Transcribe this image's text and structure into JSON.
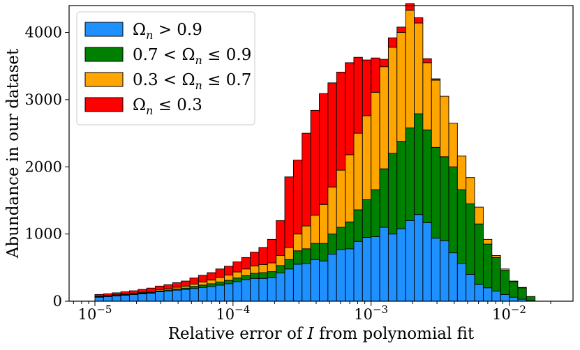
{
  "chart_data": {
    "type": "bar",
    "stacked": true,
    "x_scale": "log",
    "xlabel": "Relative error of I from polynomial fit",
    "ylabel": "Abundance in our dataset",
    "xlim": [
      6.5e-06,
      0.029
    ],
    "ylim": [
      0,
      4400
    ],
    "x_ticks": [
      {
        "value": 1e-05,
        "mantissa": "10",
        "exponent": "−5"
      },
      {
        "value": 0.0001,
        "mantissa": "10",
        "exponent": "−4"
      },
      {
        "value": 0.001,
        "mantissa": "10",
        "exponent": "−3"
      },
      {
        "value": 0.01,
        "mantissa": "10",
        "exponent": "−2"
      }
    ],
    "y_ticks": [
      0,
      1000,
      2000,
      3000,
      4000
    ],
    "legend_position": "upper-left",
    "bin_log10_start": -5.0,
    "bin_log10_width": 0.0625,
    "series": [
      {
        "name": "Ω_n > 0.9",
        "label_main": "Ω",
        "label_sub": "n",
        "label_rest": " > 0.9",
        "color": "#1E90FF",
        "values": [
          60,
          70,
          80,
          90,
          100,
          110,
          120,
          140,
          150,
          165,
          175,
          190,
          205,
          220,
          240,
          260,
          290,
          320,
          340,
          340,
          350,
          420,
          480,
          550,
          560,
          620,
          600,
          700,
          770,
          780,
          890,
          950,
          960,
          1100,
          1000,
          1080,
          1200,
          1290,
          1170,
          940,
          900,
          720,
          560,
          400,
          250,
          200,
          150,
          100,
          60,
          30,
          10
        ]
      },
      {
        "name": "0.7 < Ω_n ≤ 0.9",
        "label_main": "0.7 < Ω",
        "label_sub": "n",
        "label_rest": " ≤ 0.9",
        "color": "#008000",
        "values": [
          5,
          5,
          6,
          6,
          8,
          10,
          10,
          12,
          15,
          18,
          20,
          30,
          35,
          40,
          45,
          50,
          55,
          60,
          75,
          85,
          90,
          110,
          140,
          200,
          220,
          240,
          260,
          300,
          330,
          400,
          470,
          560,
          700,
          870,
          1200,
          1300,
          1380,
          1500,
          1380,
          1350,
          1250,
          1280,
          1100,
          1050,
          900,
          650,
          500,
          360,
          230,
          170,
          60
        ]
      },
      {
        "name": "0.3 < Ω_n ≤ 0.7",
        "label_main": "0.3 < Ω",
        "label_sub": "n",
        "label_rest": " ≤ 0.7",
        "color": "#FFA500",
        "values": [
          8,
          8,
          9,
          10,
          10,
          12,
          14,
          18,
          20,
          25,
          30,
          35,
          45,
          55,
          70,
          80,
          90,
          100,
          110,
          120,
          130,
          150,
          180,
          250,
          340,
          420,
          580,
          700,
          850,
          1000,
          1140,
          1250,
          1450,
          1520,
          1580,
          1620,
          1750,
          1350,
          1000,
          1000,
          900,
          650,
          500,
          390,
          250,
          70,
          30,
          20,
          10,
          5,
          0
        ]
      },
      {
        "name": "Ω_n ≤ 0.3",
        "label_main": "Ω",
        "label_sub": "n",
        "label_rest": " ≤ 0.3",
        "color": "#FF0000",
        "values": [
          27,
          27,
          30,
          34,
          37,
          43,
          51,
          55,
          60,
          67,
          75,
          90,
          100,
          110,
          125,
          130,
          150,
          170,
          205,
          255,
          350,
          520,
          1050,
          1100,
          1380,
          1560,
          1650,
          1550,
          1460,
          1370,
          1130,
          830,
          510,
          110,
          140,
          80,
          100,
          80,
          60,
          20,
          0,
          0,
          0,
          0,
          0,
          0,
          0,
          0,
          0,
          0,
          0
        ]
      }
    ]
  }
}
